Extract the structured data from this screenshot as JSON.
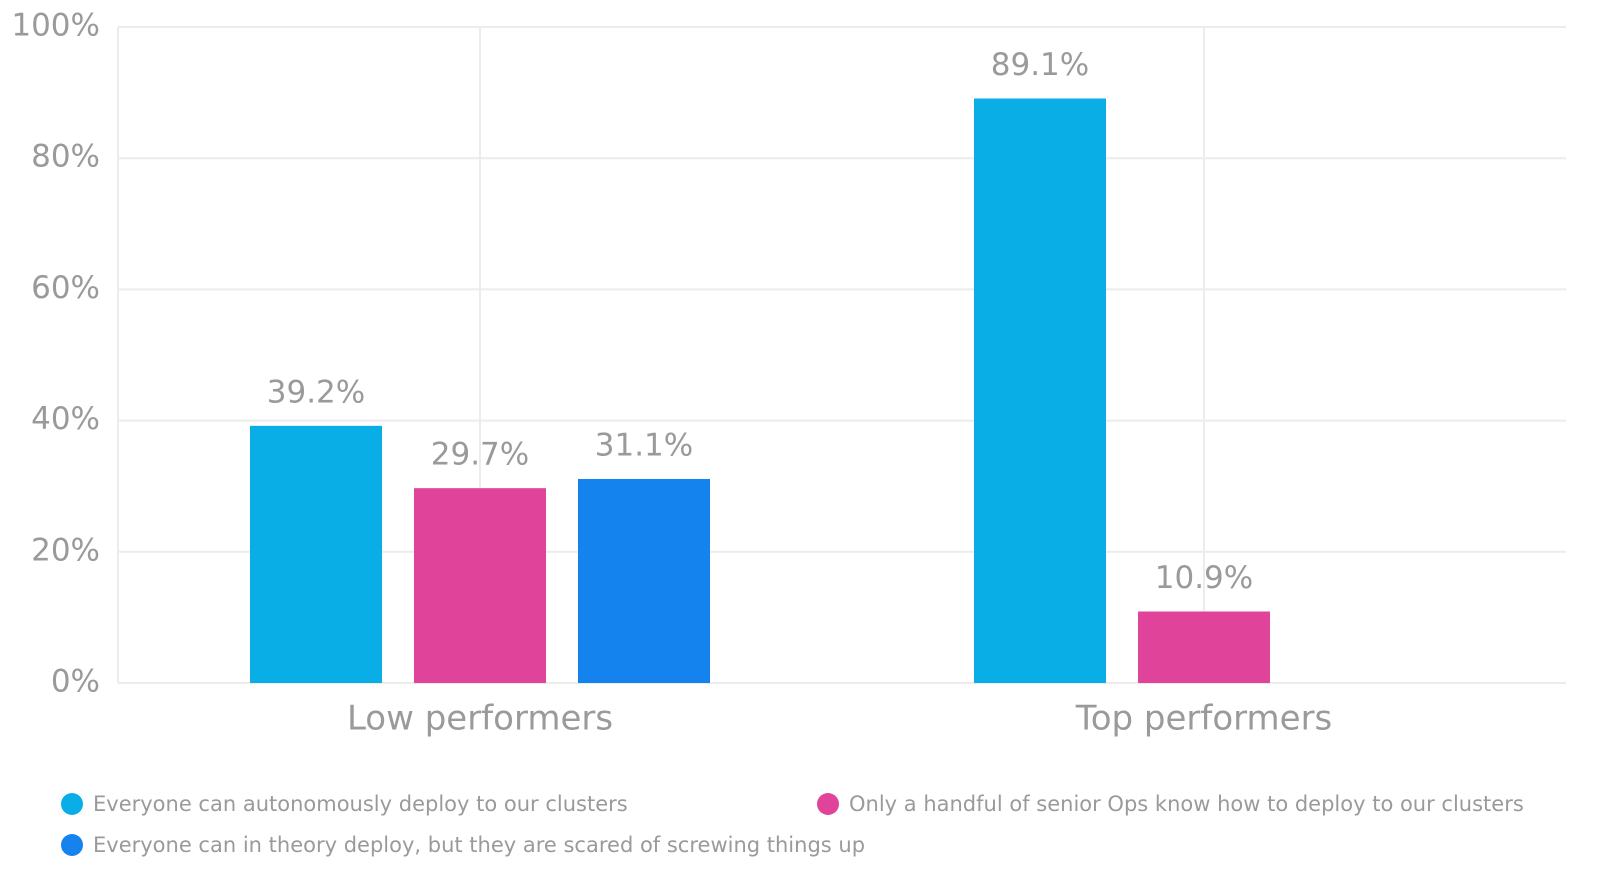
{
  "chart_data": {
    "type": "bar",
    "categories": [
      "Low performers",
      "Top performers"
    ],
    "series": [
      {
        "name": "Everyone can autonomously deploy to our clusters",
        "color": "#0aaee6",
        "values": [
          39.2,
          89.1
        ],
        "value_labels": [
          "39.2%",
          "89.1%"
        ]
      },
      {
        "name": "Only a handful of senior Ops know how to deploy to our clusters",
        "color": "#e0449a",
        "values": [
          29.7,
          10.9
        ],
        "value_labels": [
          "29.7%",
          "10.9%"
        ]
      },
      {
        "name": "Everyone can in theory deploy, but they are scared of screwing things up",
        "color": "#1583ee",
        "values": [
          31.1,
          null
        ],
        "value_labels": [
          "31.1%",
          null
        ]
      }
    ],
    "ylim": [
      0,
      100
    ],
    "yticks": [
      {
        "value": 0,
        "label": "0%"
      },
      {
        "value": 20,
        "label": "20%"
      },
      {
        "value": 40,
        "label": "40%"
      },
      {
        "value": 60,
        "label": "60%"
      },
      {
        "value": 80,
        "label": "80%"
      },
      {
        "value": 100,
        "label": "100%"
      }
    ],
    "grid": true
  }
}
